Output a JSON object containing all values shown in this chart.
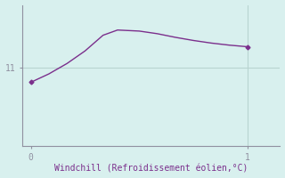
{
  "x": [
    0.0,
    0.083,
    0.167,
    0.25,
    0.333,
    0.4,
    0.5,
    0.583,
    0.667,
    0.75,
    0.833,
    0.917,
    1.0
  ],
  "y": [
    10.72,
    10.88,
    11.08,
    11.32,
    11.62,
    11.72,
    11.7,
    11.65,
    11.58,
    11.52,
    11.47,
    11.43,
    11.4
  ],
  "line_color": "#7b2f8c",
  "marker_color": "#7b2f8c",
  "background_color": "#d8f0ee",
  "grid_color": "#b8d4d0",
  "axis_color": "#9090a0",
  "xlabel": "Windchill (Refroidissement éolien,°C)",
  "xlabel_color": "#7b2f8c",
  "ytick_label": "11",
  "ytick_value": 11.0,
  "xlim": [
    -0.04,
    1.15
  ],
  "ylim": [
    9.5,
    12.2
  ],
  "xticks": [
    0,
    1
  ],
  "xtick_labels": [
    "0",
    "1"
  ]
}
